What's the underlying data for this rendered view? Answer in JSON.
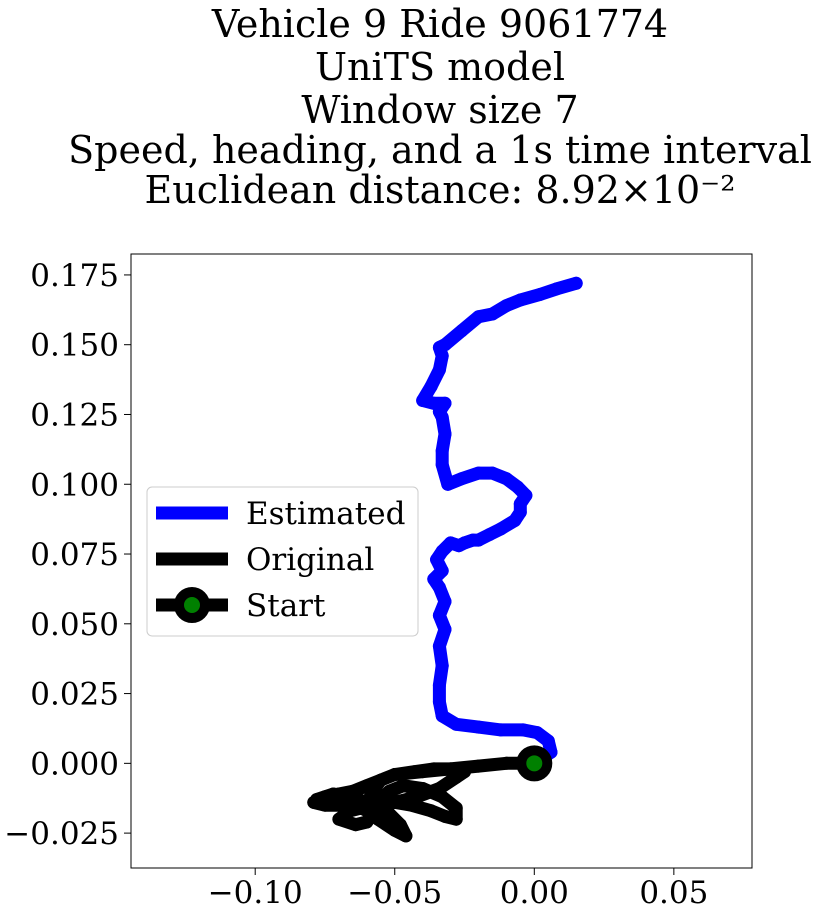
{
  "chart_data": {
    "type": "line",
    "title_lines": [
      "Vehicle 9 Ride 9061774",
      "UniTS model",
      "Window size 7",
      "Speed, heading, and a 1s time interval",
      "Euclidean distance: 8.92×10⁻²"
    ],
    "xlabel": "",
    "ylabel": "",
    "xlim": [
      -0.1445,
      0.078
    ],
    "ylim": [
      -0.0375,
      0.1825
    ],
    "x_ticks": [
      {
        "value": -0.1,
        "label": "−0.10"
      },
      {
        "value": -0.05,
        "label": "−0.05"
      },
      {
        "value": 0.0,
        "label": "0.00"
      },
      {
        "value": 0.05,
        "label": "0.05"
      }
    ],
    "y_ticks": [
      {
        "value": -0.025,
        "label": "−0.025"
      },
      {
        "value": 0.0,
        "label": "0.000"
      },
      {
        "value": 0.025,
        "label": "0.025"
      },
      {
        "value": 0.05,
        "label": "0.050"
      },
      {
        "value": 0.075,
        "label": "0.075"
      },
      {
        "value": 0.1,
        "label": "0.100"
      },
      {
        "value": 0.125,
        "label": "0.125"
      },
      {
        "value": 0.15,
        "label": "0.150"
      },
      {
        "value": 0.175,
        "label": "0.175"
      }
    ],
    "grid": false,
    "legend_position": "center-left",
    "series": [
      {
        "name": "Estimated",
        "color": "#0000ff",
        "x": [
          0.0,
          0.006,
          0.005,
          0.001,
          -0.004,
          -0.012,
          -0.02,
          -0.028,
          -0.033,
          -0.034,
          -0.034,
          -0.033,
          -0.034,
          -0.032,
          -0.034,
          -0.032,
          -0.034,
          -0.036,
          -0.033,
          -0.035,
          -0.033,
          -0.03,
          -0.027,
          -0.025,
          -0.022,
          -0.02,
          -0.016,
          -0.012,
          -0.007,
          -0.005,
          -0.005,
          -0.003,
          -0.006,
          -0.01,
          -0.015,
          -0.02,
          -0.026,
          -0.031,
          -0.033,
          -0.033,
          -0.032,
          -0.033,
          -0.034,
          -0.032,
          -0.036,
          -0.04,
          -0.037,
          -0.034,
          -0.033,
          -0.034,
          -0.032,
          -0.026,
          -0.02,
          -0.015,
          -0.01,
          -0.005,
          0.002,
          0.008,
          0.015
        ],
        "y": [
          0.0,
          0.004,
          0.008,
          0.011,
          0.012,
          0.012,
          0.013,
          0.014,
          0.017,
          0.022,
          0.028,
          0.035,
          0.042,
          0.048,
          0.053,
          0.058,
          0.063,
          0.066,
          0.069,
          0.073,
          0.076,
          0.079,
          0.078,
          0.079,
          0.08,
          0.08,
          0.082,
          0.084,
          0.087,
          0.09,
          0.093,
          0.096,
          0.099,
          0.102,
          0.104,
          0.104,
          0.102,
          0.1,
          0.107,
          0.112,
          0.118,
          0.124,
          0.126,
          0.129,
          0.129,
          0.13,
          0.135,
          0.141,
          0.146,
          0.149,
          0.15,
          0.155,
          0.16,
          0.161,
          0.164,
          0.166,
          0.168,
          0.17,
          0.172
        ]
      },
      {
        "name": "Original",
        "color": "#000000",
        "x": [
          0.0,
          -0.01,
          -0.02,
          -0.03,
          -0.04,
          -0.05,
          -0.055,
          -0.06,
          -0.065,
          -0.07,
          -0.075,
          -0.079,
          -0.075,
          -0.068,
          -0.062,
          -0.058,
          -0.06,
          -0.064,
          -0.07,
          -0.066,
          -0.058,
          -0.05,
          -0.044,
          -0.037,
          -0.032,
          -0.028,
          -0.028,
          -0.033,
          -0.04,
          -0.047,
          -0.052,
          -0.055,
          -0.05,
          -0.042,
          -0.034,
          -0.028,
          -0.025,
          -0.03,
          -0.036,
          -0.043,
          -0.05,
          -0.055,
          -0.058,
          -0.06,
          -0.056,
          -0.05,
          -0.046,
          -0.048,
          -0.052,
          -0.054,
          -0.057,
          -0.06,
          -0.066,
          -0.072,
          -0.078
        ],
        "y": [
          0.0,
          0.0,
          -0.001,
          -0.002,
          -0.003,
          -0.004,
          -0.006,
          -0.008,
          -0.01,
          -0.011,
          -0.012,
          -0.014,
          -0.015,
          -0.015,
          -0.016,
          -0.018,
          -0.021,
          -0.022,
          -0.02,
          -0.017,
          -0.015,
          -0.014,
          -0.015,
          -0.017,
          -0.019,
          -0.02,
          -0.016,
          -0.012,
          -0.009,
          -0.008,
          -0.01,
          -0.013,
          -0.014,
          -0.012,
          -0.009,
          -0.005,
          -0.003,
          -0.002,
          -0.002,
          -0.003,
          -0.004,
          -0.006,
          -0.01,
          -0.015,
          -0.02,
          -0.024,
          -0.026,
          -0.022,
          -0.018,
          -0.017,
          -0.016,
          -0.014,
          -0.012,
          -0.011,
          -0.013
        ]
      }
    ],
    "start": {
      "name": "Start",
      "x": 0.0,
      "y": 0.0,
      "edge_color": "#000000",
      "face_color": "#008000"
    },
    "legend": [
      {
        "label": "Estimated",
        "kind": "line",
        "color": "#0000ff"
      },
      {
        "label": "Original",
        "kind": "line",
        "color": "#000000"
      },
      {
        "label": "Start",
        "kind": "marker-line",
        "color": "#000000",
        "marker_color": "#008000"
      }
    ]
  }
}
